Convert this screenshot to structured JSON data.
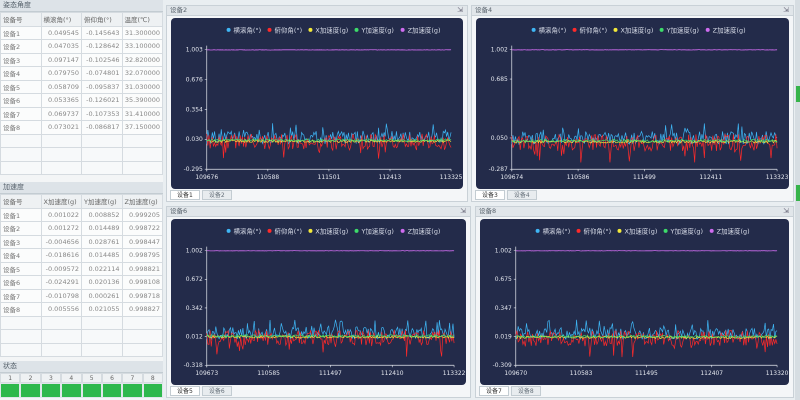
{
  "left": {
    "angle_section_title": "姿态角度",
    "angle_headers": [
      "设备号",
      "横滚角(°)",
      "俯仰角(°)",
      "温度(℃)"
    ],
    "angle_rows": [
      [
        "设备1",
        "0.049545",
        "-0.145643",
        "31.300000"
      ],
      [
        "设备2",
        "0.047035",
        "-0.128642",
        "33.100000"
      ],
      [
        "设备3",
        "0.097147",
        "-0.102546",
        "32.820000"
      ],
      [
        "设备4",
        "0.079750",
        "-0.074801",
        "32.070000"
      ],
      [
        "设备5",
        "0.058709",
        "-0.095837",
        "31.030000"
      ],
      [
        "设备6",
        "0.053365",
        "-0.126021",
        "35.390000"
      ],
      [
        "设备7",
        "0.069737",
        "-0.107353",
        "31.410000"
      ],
      [
        "设备8",
        "0.073021",
        "-0.086817",
        "37.150000"
      ]
    ],
    "accel_section_title": "加速度",
    "accel_headers": [
      "设备号",
      "X加速度(g)",
      "Y加速度(g)",
      "Z加速度(g)"
    ],
    "accel_rows": [
      [
        "设备1",
        "0.001022",
        "0.008852",
        "0.999205"
      ],
      [
        "设备2",
        "0.001272",
        "0.014489",
        "0.998722"
      ],
      [
        "设备3",
        "-0.004656",
        "0.028761",
        "0.998447"
      ],
      [
        "设备4",
        "-0.018616",
        "0.014485",
        "0.998795"
      ],
      [
        "设备5",
        "-0.009572",
        "0.022114",
        "0.998821"
      ],
      [
        "设备6",
        "-0.024291",
        "0.020136",
        "0.998108"
      ],
      [
        "设备7",
        "-0.010798",
        "0.000261",
        "0.998718"
      ],
      [
        "设备8",
        "0.005556",
        "0.021055",
        "0.998827"
      ]
    ],
    "status_section_title": "状态",
    "status_labels": [
      "1",
      "2",
      "3",
      "4",
      "5",
      "6",
      "7",
      "8"
    ]
  },
  "panels": [
    {
      "title": "设备2",
      "legend": [
        "横滚角(°)",
        "俯仰角(°)",
        "X加速度(g)",
        "Y加速度(g)",
        "Z加速度(g)"
      ],
      "yticks": [
        "1.003",
        "0.676",
        "0.354",
        "0.030",
        "-0.295"
      ],
      "xticks": [
        "109676",
        "110588",
        "111501",
        "112413",
        "113325"
      ],
      "tabs": [
        "设备1",
        "设备2"
      ],
      "active_tab": 0
    },
    {
      "title": "设备4",
      "legend": [
        "横滚角(°)",
        "俯仰角(°)",
        "X加速度(g)",
        "Y加速度(g)",
        "Z加速度(g)"
      ],
      "yticks": [
        "1.002",
        "0.685",
        "0.050",
        "-0.287"
      ],
      "xticks": [
        "109674",
        "110586",
        "111499",
        "112411",
        "113323"
      ],
      "tabs": [
        "设备3",
        "设备4"
      ],
      "active_tab": 0
    },
    {
      "title": "设备6",
      "legend": [
        "横滚角(°)",
        "俯仰角(°)",
        "X加速度(g)",
        "Y加速度(g)",
        "Z加速度(g)"
      ],
      "yticks": [
        "1.002",
        "0.672",
        "0.342",
        "0.012",
        "-0.318"
      ],
      "xticks": [
        "109673",
        "110585",
        "111497",
        "112410",
        "113322"
      ],
      "tabs": [
        "设备5",
        "设备6"
      ],
      "active_tab": 0
    },
    {
      "title": "设备8",
      "legend": [
        "横滚角(°)",
        "俯仰角(°)",
        "X加速度(g)",
        "Y加速度(g)",
        "Z加速度(g)"
      ],
      "yticks": [
        "1.002",
        "0.675",
        "0.347",
        "0.019",
        "-0.309"
      ],
      "xticks": [
        "109670",
        "110583",
        "111495",
        "112407",
        "113320"
      ],
      "tabs": [
        "设备7",
        "设备8"
      ],
      "active_tab": 0
    }
  ],
  "chart_data": [
    {
      "type": "line",
      "series": [
        {
          "name": "横滚角(°)",
          "color": "#3fb6f5",
          "level": 0.05
        },
        {
          "name": "俯仰角(°)",
          "color": "#ff2a2a",
          "level": 0.0
        },
        {
          "name": "X加速度(g)",
          "color": "#f3e93a",
          "level": 0.01
        },
        {
          "name": "Y加速度(g)",
          "color": "#3ddc6a",
          "level": 0.02
        },
        {
          "name": "Z加速度(g)",
          "color": "#cf6cf0",
          "level": 1.0
        }
      ],
      "xlim": [
        109676,
        113325
      ],
      "ylim": [
        -0.295,
        1.003
      ]
    },
    {
      "type": "line",
      "series": [
        {
          "name": "横滚角(°)",
          "color": "#3fb6f5",
          "level": 0.05
        },
        {
          "name": "俯仰角(°)",
          "color": "#ff2a2a",
          "level": 0.0
        },
        {
          "name": "X加速度(g)",
          "color": "#f3e93a",
          "level": 0.01
        },
        {
          "name": "Y加速度(g)",
          "color": "#3ddc6a",
          "level": 0.02
        },
        {
          "name": "Z加速度(g)",
          "color": "#cf6cf0",
          "level": 1.0
        }
      ],
      "xlim": [
        109674,
        113323
      ],
      "ylim": [
        -0.287,
        1.002
      ]
    },
    {
      "type": "line",
      "series": [
        {
          "name": "横滚角(°)",
          "color": "#3fb6f5",
          "level": 0.05
        },
        {
          "name": "俯仰角(°)",
          "color": "#ff2a2a",
          "level": 0.0
        },
        {
          "name": "X加速度(g)",
          "color": "#f3e93a",
          "level": 0.01
        },
        {
          "name": "Y加速度(g)",
          "color": "#3ddc6a",
          "level": 0.02
        },
        {
          "name": "Z加速度(g)",
          "color": "#cf6cf0",
          "level": 1.0
        }
      ],
      "xlim": [
        109673,
        113322
      ],
      "ylim": [
        -0.318,
        1.002
      ]
    },
    {
      "type": "line",
      "series": [
        {
          "name": "横滚角(°)",
          "color": "#3fb6f5",
          "level": 0.05
        },
        {
          "name": "俯仰角(°)",
          "color": "#ff2a2a",
          "level": 0.0
        },
        {
          "name": "X加速度(g)",
          "color": "#f3e93a",
          "level": 0.01
        },
        {
          "name": "Y加速度(g)",
          "color": "#3ddc6a",
          "level": 0.02
        },
        {
          "name": "Z加速度(g)",
          "color": "#cf6cf0",
          "level": 1.0
        }
      ],
      "xlim": [
        109670,
        113320
      ],
      "ylim": [
        -0.309,
        1.002
      ]
    }
  ]
}
